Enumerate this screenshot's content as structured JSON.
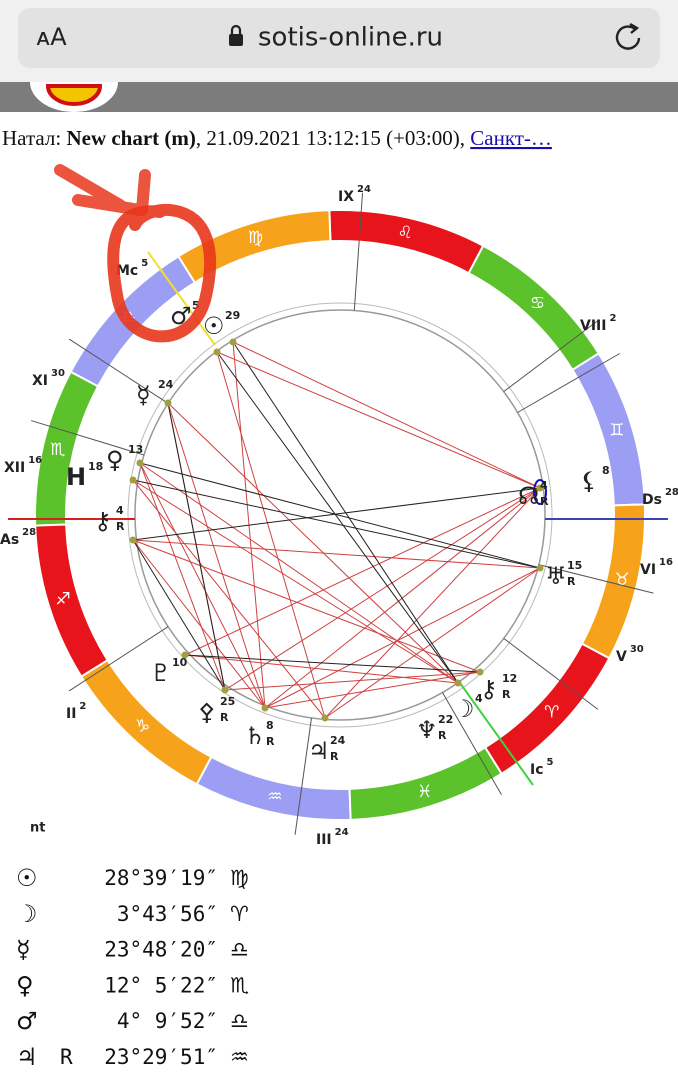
{
  "browser": {
    "text_size": "ᴀA",
    "url": "sotis-online.ru"
  },
  "header": {
    "prefix": "Натал:",
    "chart_name": "New chart (m)",
    "details": ", 21.09.2021 13:12:15 (+03:00),",
    "place": "Санкт-…"
  },
  "signs": [
    {
      "glyph": "♊",
      "color": "#9b9ef2"
    },
    {
      "glyph": "♋",
      "color": "#5cc22b"
    },
    {
      "glyph": "♌",
      "color": "#e8141c"
    },
    {
      "glyph": "♍",
      "color": "#f7a21b"
    },
    {
      "glyph": "♎",
      "color": "#9b9ef2"
    },
    {
      "glyph": "♏",
      "color": "#5cc22b"
    },
    {
      "glyph": "♐",
      "color": "#e8141c"
    },
    {
      "glyph": "♑",
      "color": "#f7a21b"
    },
    {
      "glyph": "♒",
      "color": "#9b9ef2"
    },
    {
      "glyph": "♓",
      "color": "#5cc22b"
    },
    {
      "glyph": "♈",
      "color": "#e8141c"
    },
    {
      "glyph": "♉",
      "color": "#f7a21b"
    }
  ],
  "houses": [
    {
      "label": "IX",
      "degree": "24"
    },
    {
      "label": "VIII",
      "degree": "2"
    },
    {
      "label": "Ds",
      "degree": "28"
    },
    {
      "label": "VI",
      "degree": "16"
    },
    {
      "label": "V",
      "degree": "30"
    },
    {
      "label": "Ic",
      "degree": "5"
    },
    {
      "label": "III",
      "degree": "24"
    },
    {
      "label": "II",
      "degree": "2"
    },
    {
      "label": "As",
      "degree": "28"
    },
    {
      "label": "XII",
      "degree": "16"
    },
    {
      "label": "XI",
      "degree": "30"
    },
    {
      "label": "Mc",
      "degree": "5"
    }
  ],
  "planets": [
    {
      "glyph": "♂",
      "degree": "5"
    },
    {
      "glyph": "☉",
      "degree": "29"
    },
    {
      "glyph": "☿",
      "degree": "24"
    },
    {
      "glyph": "♀",
      "degree": "13"
    },
    {
      "glyph": "H",
      "degree": "18"
    },
    {
      "glyph": "⚷",
      "degree": "4",
      "retro": "R"
    },
    {
      "glyph": "☊",
      "degree": "4",
      "retro": "R"
    },
    {
      "glyph": "⚸",
      "degree": "8"
    },
    {
      "glyph": "♅",
      "degree": "15",
      "retro": "R"
    },
    {
      "glyph": "♇",
      "degree": "10"
    },
    {
      "glyph": "⚴",
      "degree": "25",
      "retro": "R"
    },
    {
      "glyph": "♄",
      "degree": "8",
      "retro": "R"
    },
    {
      "glyph": "♃",
      "degree": "24",
      "retro": "R"
    },
    {
      "glyph": "♆",
      "degree": "22",
      "retro": "R"
    },
    {
      "glyph": "☽",
      "degree": "4"
    },
    {
      "glyph": "⚷",
      "degree": "12",
      "retro": "R"
    }
  ],
  "footer_label": "nt",
  "positions": [
    {
      "glyph": "☉",
      "position": "28°39′19″",
      "sign": "♍"
    },
    {
      "glyph": "☽",
      "position": "3°43′56″",
      "sign": "♈"
    },
    {
      "glyph": "☿",
      "position": "23°48′20″",
      "sign": "♎"
    },
    {
      "glyph": "♀",
      "position": "12° 5′22″",
      "sign": "♏"
    },
    {
      "glyph": "♂",
      "position": "4° 9′52″",
      "sign": "♎"
    },
    {
      "glyph": "♃",
      "retro": "R",
      "position": "23°29′51″",
      "sign": "♒"
    }
  ]
}
